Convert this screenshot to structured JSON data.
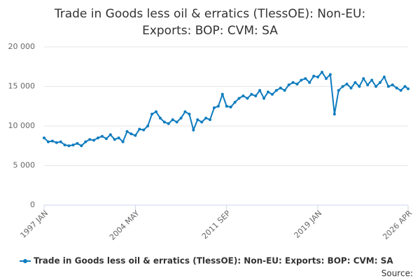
{
  "chart_data": {
    "type": "line",
    "title": "Trade in Goods less oil & erratics (TlessOE): Non-EU: Exports: BOP: CVM: SA",
    "source": "Source:",
    "x": [
      "1997-01",
      "1997-05",
      "1997-09",
      "1998-01",
      "1998-05",
      "1998-09",
      "1999-01",
      "1999-05",
      "1999-09",
      "2000-01",
      "2000-05",
      "2000-09",
      "2001-01",
      "2001-05",
      "2001-09",
      "2002-01",
      "2002-05",
      "2002-09",
      "2003-01",
      "2003-05",
      "2003-09",
      "2004-01",
      "2004-05",
      "2004-09",
      "2005-01",
      "2005-05",
      "2005-09",
      "2006-01",
      "2006-05",
      "2006-09",
      "2007-01",
      "2007-05",
      "2007-09",
      "2008-01",
      "2008-05",
      "2008-09",
      "2009-01",
      "2009-05",
      "2009-09",
      "2010-01",
      "2010-05",
      "2010-09",
      "2011-01",
      "2011-05",
      "2011-09",
      "2012-01",
      "2012-05",
      "2012-09",
      "2013-01",
      "2013-05",
      "2013-09",
      "2014-01",
      "2014-05",
      "2014-09",
      "2015-01",
      "2015-05",
      "2015-09",
      "2016-01",
      "2016-05",
      "2016-09",
      "2017-01",
      "2017-05",
      "2017-09",
      "2018-01",
      "2018-05",
      "2018-09",
      "2019-01",
      "2019-05",
      "2019-09",
      "2020-01",
      "2020-05",
      "2020-09",
      "2021-01",
      "2021-05",
      "2021-09",
      "2022-01",
      "2022-05",
      "2022-09",
      "2023-01",
      "2023-05",
      "2023-09",
      "2024-01",
      "2024-05",
      "2024-09",
      "2025-01",
      "2025-05",
      "2025-09",
      "2026-01",
      "2026-04"
    ],
    "series": [
      {
        "name": "Trade in Goods less oil & erratics (TlessOE): Non-EU: Exports: BOP: CVM: SA",
        "color": "#0f7cbf",
        "values": [
          8500,
          8000,
          8100,
          7900,
          8000,
          7600,
          7500,
          7600,
          7800,
          7500,
          8000,
          8300,
          8200,
          8500,
          8700,
          8400,
          8900,
          8300,
          8500,
          8000,
          9300,
          9000,
          8800,
          9600,
          9500,
          10000,
          11500,
          11800,
          11000,
          10500,
          10300,
          10800,
          10500,
          11000,
          11800,
          11500,
          9500,
          10800,
          10500,
          11000,
          10800,
          12300,
          12500,
          14000,
          12500,
          12400,
          13000,
          13500,
          13800,
          13500,
          14000,
          13800,
          14500,
          13500,
          14300,
          14000,
          14500,
          14800,
          14500,
          15200,
          15500,
          15300,
          15800,
          16000,
          15500,
          16300,
          16200,
          16800,
          16000,
          16500,
          11500,
          14500,
          15000,
          15300,
          14800,
          15500,
          15000,
          16000,
          15200,
          15800,
          15000,
          15500,
          16200,
          15000,
          15200,
          14800,
          14500,
          15000,
          14700
        ]
      }
    ],
    "ylim": [
      0,
      20000
    ],
    "yticks": [
      0,
      {
        "value": 5000,
        "label": "5 000"
      },
      {
        "value": 10000,
        "label": "10 000"
      },
      {
        "value": 15000,
        "label": "15 000"
      },
      {
        "value": 20000,
        "label": "20 000"
      }
    ],
    "xlim": [
      "1997-01",
      "2026-04"
    ],
    "xticks": [
      {
        "value": "1997-01",
        "label": "1997 JAN"
      },
      {
        "value": "2004-05",
        "label": "2004 MAY"
      },
      {
        "value": "2011-09",
        "label": "2011 SEP"
      },
      {
        "value": "2019-01",
        "label": "2019 JAN"
      },
      {
        "value": "2026-04",
        "label": "2026 APR"
      }
    ],
    "grid": true
  }
}
